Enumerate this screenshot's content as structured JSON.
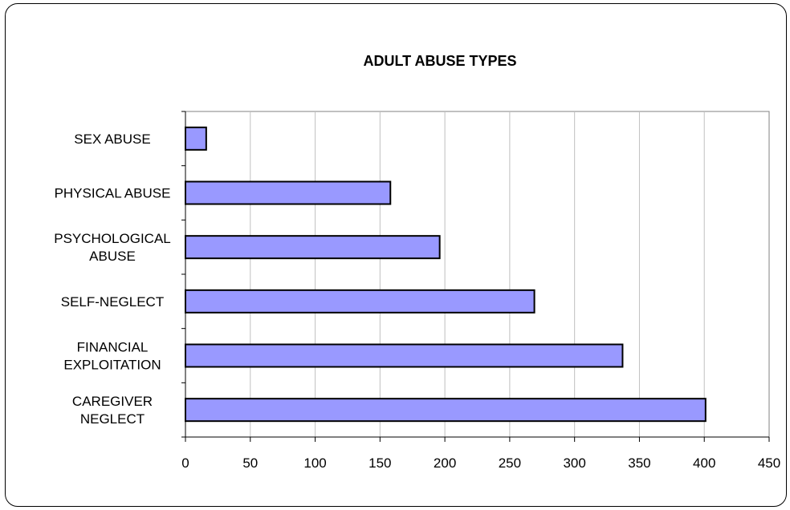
{
  "chart_data": {
    "type": "bar",
    "orientation": "horizontal",
    "title": "ADULT ABUSE TYPES",
    "xlabel": "",
    "ylabel": "",
    "categories": [
      [
        "SEX ABUSE"
      ],
      [
        "PHYSICAL ABUSE"
      ],
      [
        "PSYCHOLOGICAL",
        "ABUSE"
      ],
      [
        "SELF-NEGLECT"
      ],
      [
        "FINANCIAL",
        "EXPLOITATION"
      ],
      [
        "CAREGIVER",
        "NEGLECT"
      ]
    ],
    "values": [
      16,
      158,
      196,
      269,
      337,
      401
    ],
    "xlim": [
      0,
      450
    ],
    "xticks": [
      "0",
      "50",
      "100",
      "150",
      "200",
      "250",
      "300",
      "350",
      "400",
      "450"
    ],
    "grid": "vertical",
    "legend": "none",
    "colors": {
      "bar_fill": "#9999ff",
      "bar_stroke": "#000000",
      "gridline": "#c0c0c0",
      "axis": "#000000"
    }
  }
}
